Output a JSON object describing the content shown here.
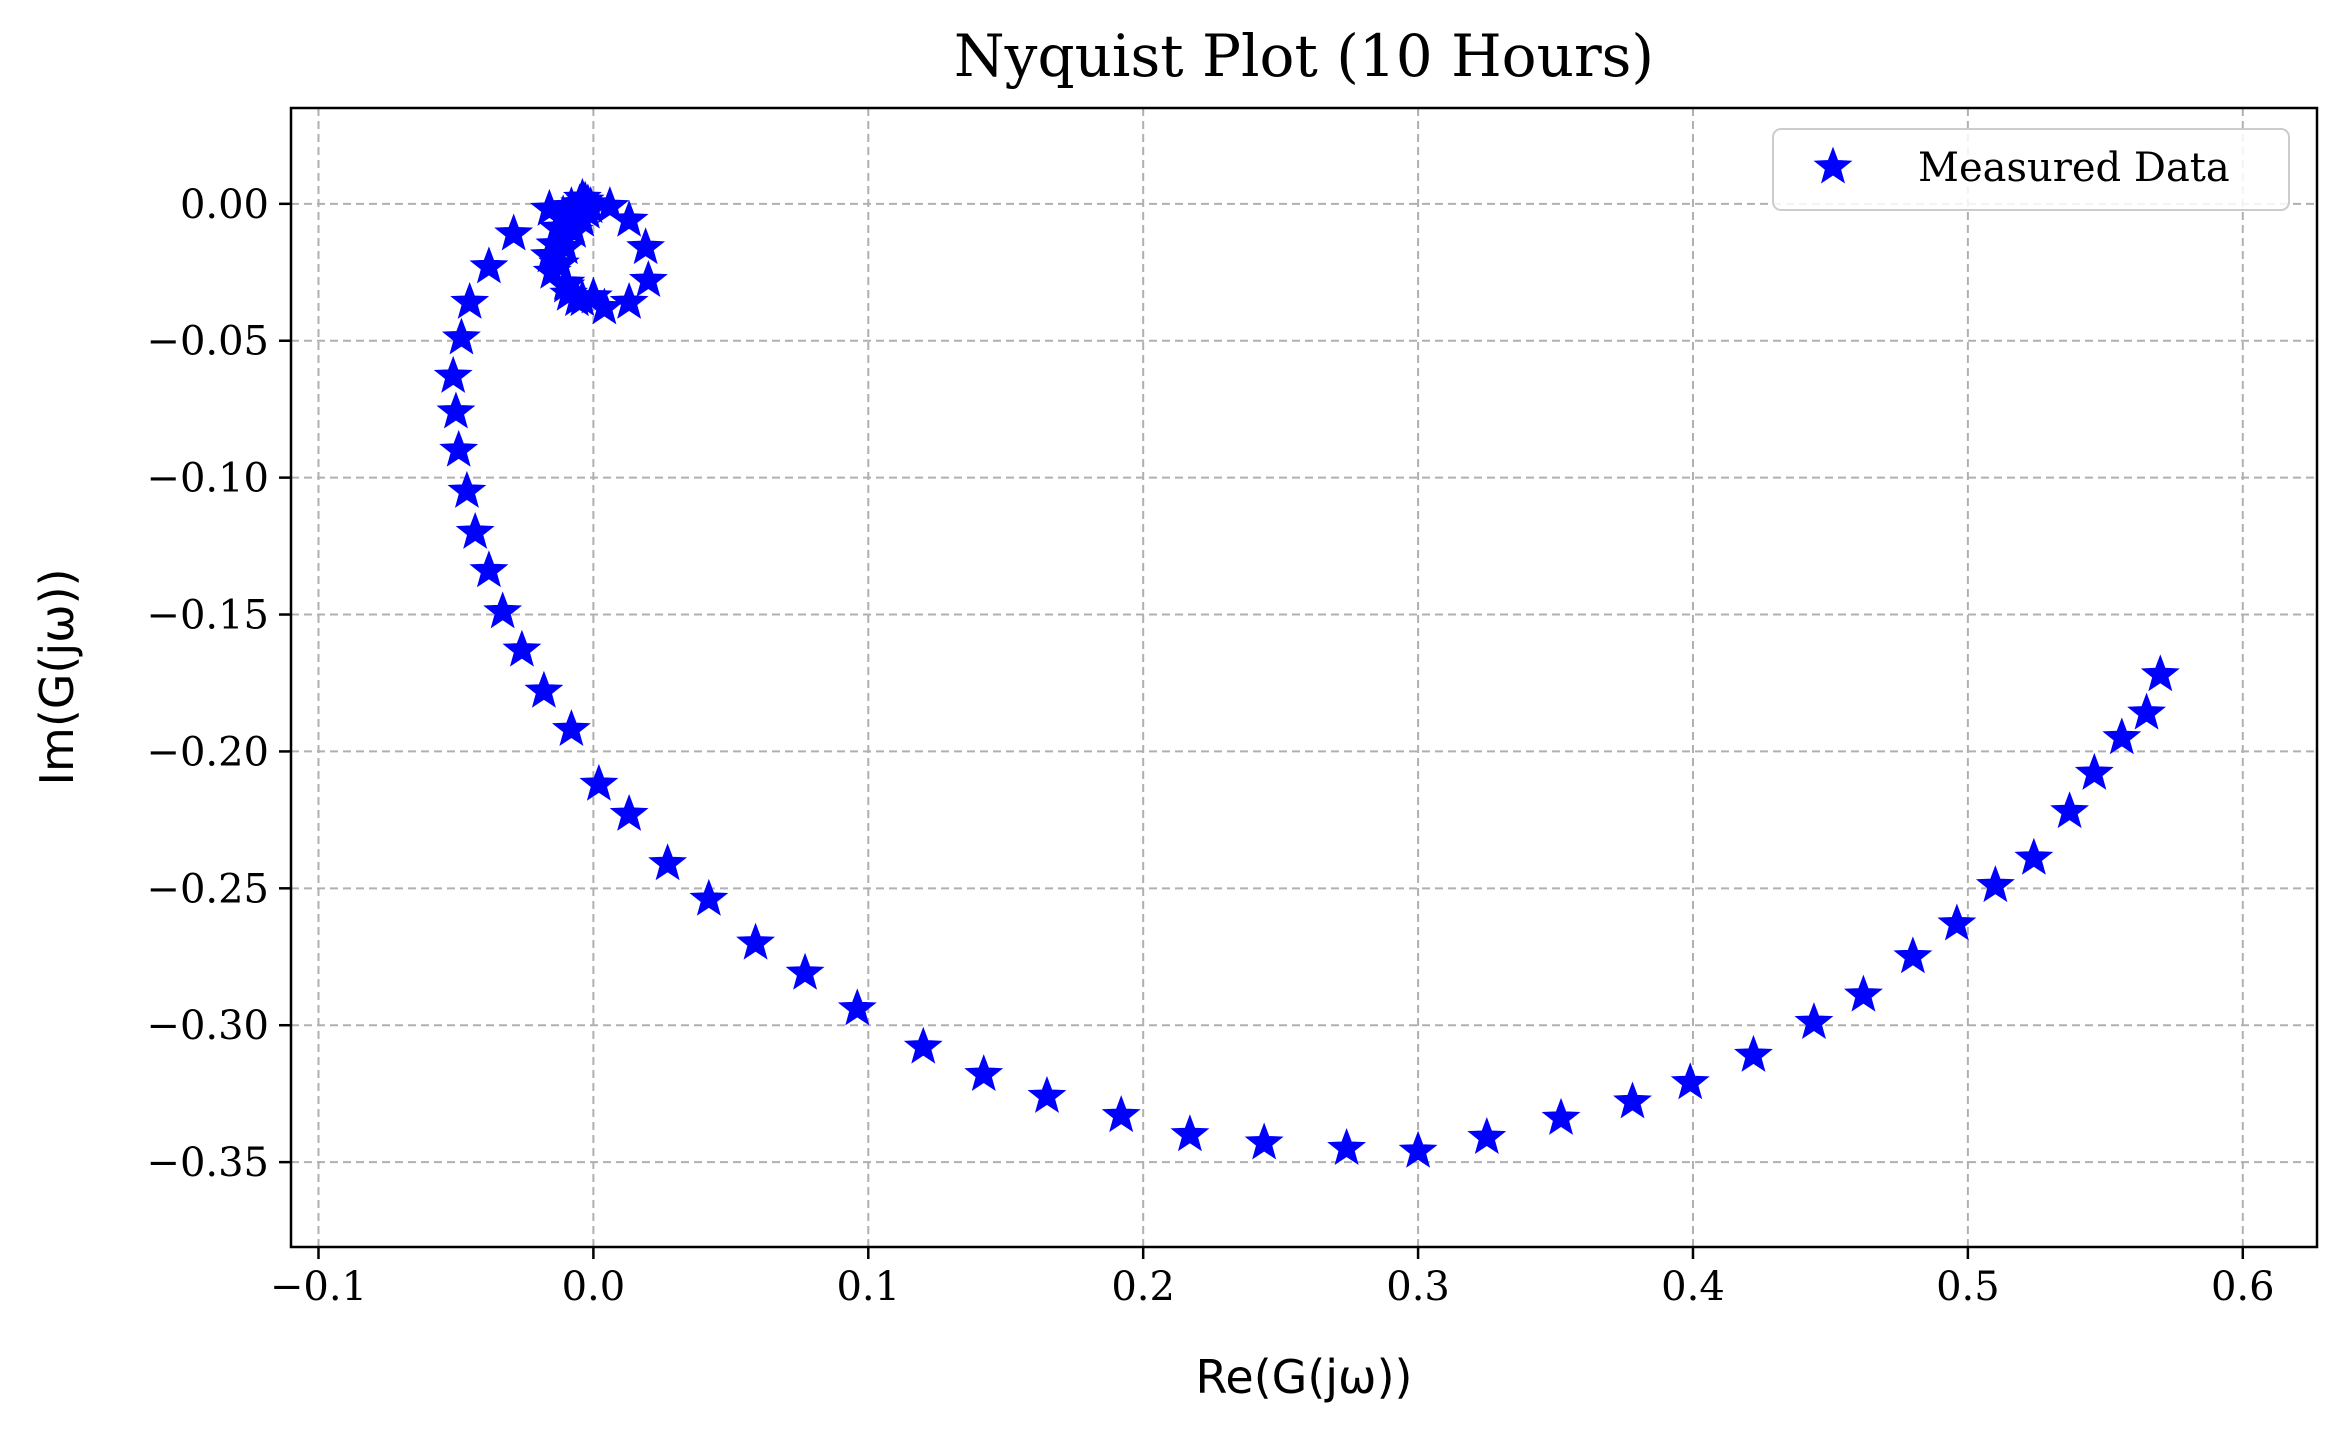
{
  "chart_data": {
    "type": "scatter",
    "title": "Nyquist Plot (10 Hours)",
    "xlabel": "Re(G(jω))",
    "ylabel": "Im(G(jω))",
    "xlim": [
      -0.11,
      0.627
    ],
    "ylim": [
      -0.381,
      0.035
    ],
    "x_ticks": [
      -0.1,
      0.0,
      0.1,
      0.2,
      0.3,
      0.4,
      0.5,
      0.6
    ],
    "x_tick_labels": [
      "−0.1",
      "0.0",
      "0.1",
      "0.2",
      "0.3",
      "0.4",
      "0.5",
      "0.6"
    ],
    "y_ticks": [
      0.0,
      -0.05,
      -0.1,
      -0.15,
      -0.2,
      -0.25,
      -0.3,
      -0.35
    ],
    "y_tick_labels": [
      "0.00",
      "−0.05",
      "−0.10",
      "−0.15",
      "−0.20",
      "−0.25",
      "−0.30",
      "−0.35"
    ],
    "grid": true,
    "legend": {
      "position": "top-right",
      "entries": [
        "Measured Data"
      ]
    },
    "marker": "star",
    "color": "#0000ff",
    "series": [
      {
        "name": "Measured Data",
        "points": [
          [
            0.57,
            -0.172
          ],
          [
            0.565,
            -0.186
          ],
          [
            0.556,
            -0.195
          ],
          [
            0.546,
            -0.208
          ],
          [
            0.537,
            -0.222
          ],
          [
            0.524,
            -0.239
          ],
          [
            0.51,
            -0.249
          ],
          [
            0.496,
            -0.263
          ],
          [
            0.48,
            -0.275
          ],
          [
            0.462,
            -0.289
          ],
          [
            0.444,
            -0.299
          ],
          [
            0.422,
            -0.311
          ],
          [
            0.399,
            -0.321
          ],
          [
            0.378,
            -0.328
          ],
          [
            0.352,
            -0.334
          ],
          [
            0.325,
            -0.341
          ],
          [
            0.3,
            -0.346
          ],
          [
            0.274,
            -0.345
          ],
          [
            0.244,
            -0.343
          ],
          [
            0.217,
            -0.34
          ],
          [
            0.192,
            -0.333
          ],
          [
            0.165,
            -0.326
          ],
          [
            0.142,
            -0.318
          ],
          [
            0.12,
            -0.308
          ],
          [
            0.096,
            -0.294
          ],
          [
            0.077,
            -0.281
          ],
          [
            0.059,
            -0.27
          ],
          [
            0.042,
            -0.254
          ],
          [
            0.027,
            -0.241
          ],
          [
            0.013,
            -0.223
          ],
          [
            0.002,
            -0.212
          ],
          [
            -0.008,
            -0.192
          ],
          [
            -0.018,
            -0.178
          ],
          [
            -0.026,
            -0.163
          ],
          [
            -0.033,
            -0.149
          ],
          [
            -0.038,
            -0.134
          ],
          [
            -0.043,
            -0.12
          ],
          [
            -0.046,
            -0.105
          ],
          [
            -0.049,
            -0.09
          ],
          [
            -0.05,
            -0.076
          ],
          [
            -0.051,
            -0.063
          ],
          [
            -0.048,
            -0.049
          ],
          [
            -0.045,
            -0.036
          ],
          [
            -0.038,
            -0.023
          ],
          [
            -0.029,
            -0.011
          ],
          [
            -0.016,
            -0.002
          ],
          [
            -0.004,
            0.002
          ],
          [
            0.006,
            -0.001
          ],
          [
            0.013,
            -0.006
          ],
          [
            0.019,
            -0.016
          ],
          [
            0.02,
            -0.028
          ],
          [
            0.013,
            -0.036
          ],
          [
            0.004,
            -0.038
          ],
          [
            -0.004,
            -0.035
          ],
          [
            -0.01,
            -0.029
          ],
          [
            -0.013,
            -0.022
          ],
          [
            -0.014,
            -0.015
          ],
          [
            -0.013,
            -0.009
          ],
          [
            -0.011,
            -0.004
          ],
          [
            -0.008,
            -0.001
          ],
          [
            -0.005,
            0.0
          ],
          [
            -0.003,
            0.001
          ],
          [
            -0.002,
            0.0
          ],
          [
            -0.001,
            -0.001
          ],
          [
            -0.002,
            -0.003
          ],
          [
            -0.004,
            -0.006
          ],
          [
            -0.007,
            -0.01
          ],
          [
            -0.01,
            -0.016
          ],
          [
            -0.012,
            -0.022
          ],
          [
            -0.01,
            -0.03
          ],
          [
            -0.006,
            -0.035
          ],
          [
            0.0,
            -0.034
          ],
          [
            -0.015,
            -0.025
          ],
          [
            -0.016,
            -0.019
          ],
          [
            -0.009,
            -0.033
          ]
        ]
      }
    ]
  }
}
